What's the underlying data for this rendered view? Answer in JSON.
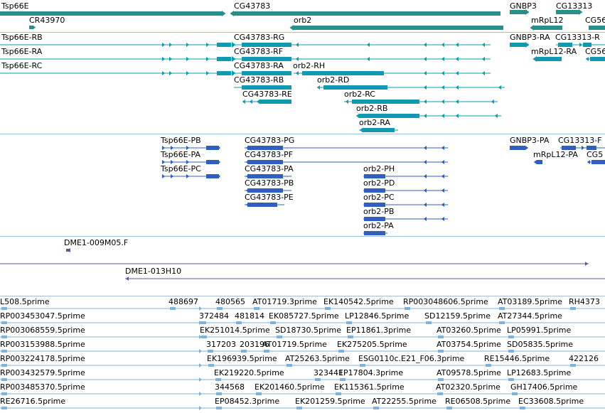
{
  "colors": {
    "gene": "#2a8f8a",
    "transcript": "#0f9ab0",
    "protein": "#2f5fbf",
    "clone": "#6b4fa0",
    "est": "#7fb2db",
    "separator": "#9fc0d8"
  },
  "tracks": {
    "genes": [
      "Tsp66E",
      "CR43970",
      "CG43783",
      "orb2",
      "GNBP3",
      "mRpL12",
      "CG13313",
      "CG56"
    ],
    "transcripts": [
      "Tsp66E-RB",
      "Tsp66E-RA",
      "Tsp66E-RC",
      "CG43783-RG",
      "CG43783-RF",
      "CG43783-RA",
      "orb2-RH",
      "CG43783-RB",
      "orb2-RD",
      "CG43783-RE",
      "orb2-RC",
      "orb2-RB",
      "orb2-RA",
      "GNBP3-RA",
      "CG13313-R",
      "mRpL12-RA",
      "CG56"
    ],
    "proteins": [
      "Tsp66E-PB",
      "Tsp66E-PA",
      "Tsp66E-PC",
      "CG43783-PG",
      "CG43783-PF",
      "CG43783-PA",
      "CG43783-PB",
      "CG43783-PE",
      "orb2-PH",
      "orb2-PD",
      "orb2-PC",
      "orb2-PB",
      "orb2-PA",
      "GNBP3-PA",
      "CG13313-F",
      "mRpL12-PA",
      "CG5"
    ],
    "clones": [
      "DME1-009M05.F",
      "DME1-013H10"
    ],
    "ests": {
      "row1": [
        "L508.5prime",
        "488697",
        "480565",
        "AT01719.3prime",
        "EK140542.5prime",
        "RP003048606.5prime",
        "AT03189.5prime",
        "RH4373"
      ],
      "row2": [
        "RP003453047.5prime",
        "372484",
        "481814",
        "EK085727.5prime",
        "LP12846.5prime",
        "SD12159.5prime",
        "AT27344.5prime"
      ],
      "row3": [
        "RP003068559.5prime",
        "EK251014.5prime",
        "SD18730.5prime",
        "EP11861.3prime",
        "AT03260.5prime",
        "LP05991.5prime"
      ],
      "row4": [
        "RP003153988.5prime",
        "317203",
        "203196",
        "AT01719.5prime",
        "EK275205.5prime",
        "AT03754.5prime",
        "SD05835.5prime"
      ],
      "row5": [
        "RP003224178.5prime",
        "EK196939.5prime",
        "AT25263.5prime",
        "ESG0110c.E21_F06.3prime",
        "RE15446.5prime",
        "422126"
      ],
      "row6": [
        "RP003432579.5prime",
        "EK219220.5prime",
        "323441",
        "EP17804.3prime",
        "AT09578.5prime",
        "LP12683.5prime"
      ],
      "row7": [
        "RP003485370.5prime",
        "344568",
        "EK201460.5prime",
        "EK115361.5prime",
        "AT02320.5prime",
        "GH17406.5prime"
      ],
      "row8": [
        "RE26716.5prime",
        "EP08452.3prime",
        "EK201259.5prime",
        "AT22255.5prime",
        "RE06508.5prime",
        "EC33608.5prime"
      ]
    }
  }
}
